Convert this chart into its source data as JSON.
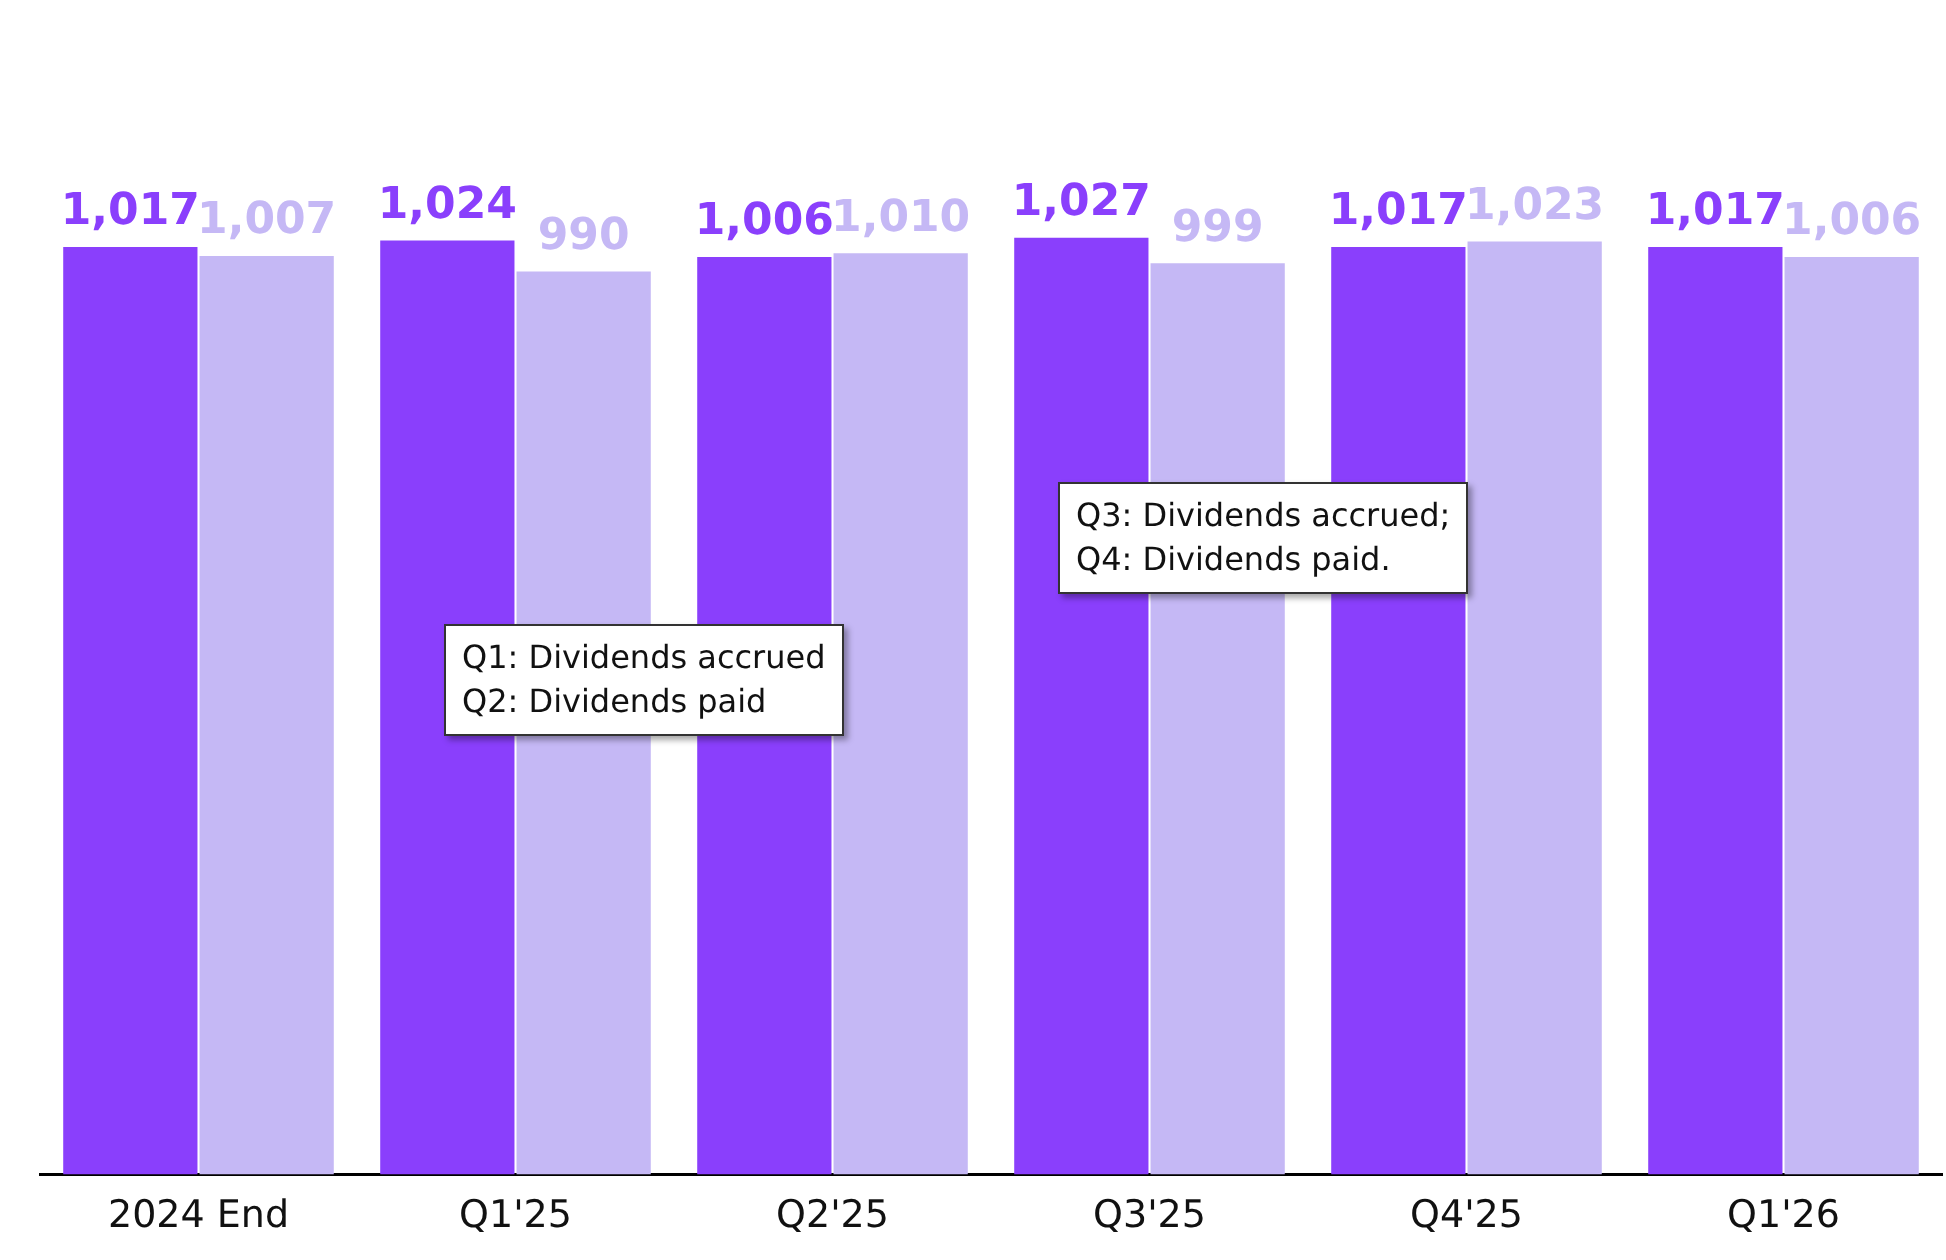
{
  "chart_data": {
    "type": "bar",
    "categories": [
      "2024 End",
      "Q1'25",
      "Q2'25",
      "Q3'25",
      "Q4'25",
      "Q1'26"
    ],
    "series": [
      {
        "color": "#8a3ffc",
        "values": [
          1017,
          1024,
          1006,
          1027,
          1017,
          1017
        ],
        "value_labels": [
          "1,017",
          "1,024",
          "1,006",
          "1,027",
          "1,017",
          "1,017"
        ]
      },
      {
        "color": "#c5b8f5",
        "values": [
          1007,
          990,
          1010,
          999,
          1023,
          1006
        ],
        "value_labels": [
          "1,007",
          "990",
          "1,010",
          "999",
          "1,023",
          "1,006"
        ]
      }
    ],
    "tick_labels": "x",
    "grid": false,
    "legend": false,
    "annotations": [
      "Q1: Dividends accrued\nQ2: Dividends paid",
      "Q3: Dividends accrued;\nQ4: Dividends paid."
    ]
  }
}
